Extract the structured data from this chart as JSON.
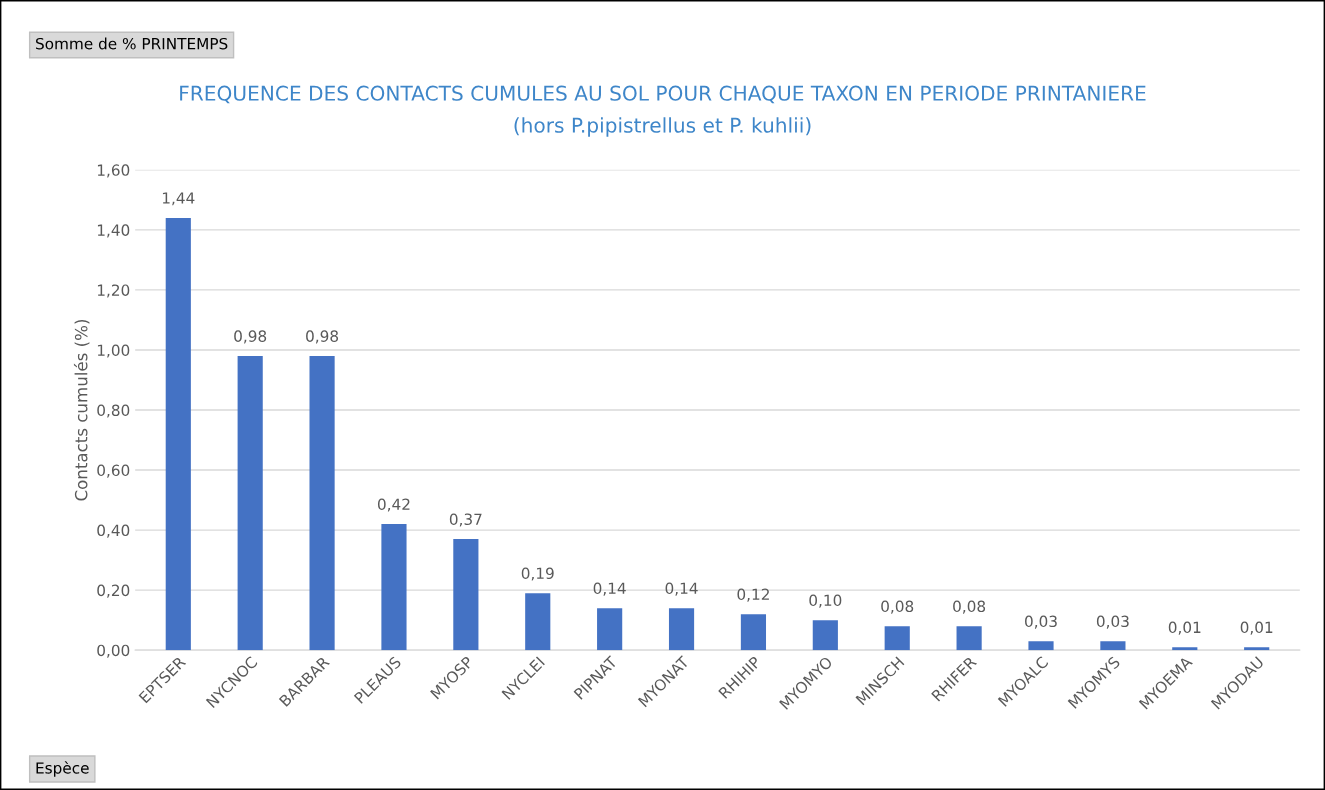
{
  "chart_data": {
    "type": "bar",
    "title": "FREQUENCE DES CONTACTS CUMULES AU SOL POUR CHAQUE TAXON EN PERIODE PRINTANIERE",
    "subtitle": "(hors P.pipistrellus et P. kuhlii)",
    "ylabel": "Contacts cumulés (%)",
    "categories": [
      "EPTSER",
      "NYCNOC",
      "BARBAR",
      "PLEAUS",
      "MYOSP",
      "NYCLEI",
      "PIPNAT",
      "MYONAT",
      "RHIHIP",
      "MYOMYO",
      "MINSCH",
      "RHIFER",
      "MYOALC",
      "MYOMYS",
      "MYOEMA",
      "MYODAU"
    ],
    "values": [
      1.44,
      0.98,
      0.98,
      0.42,
      0.37,
      0.19,
      0.14,
      0.14,
      0.12,
      0.1,
      0.08,
      0.08,
      0.03,
      0.03,
      0.01,
      0.01
    ],
    "value_labels": [
      "1,44",
      "0,98",
      "0,98",
      "0,42",
      "0,37",
      "0,19",
      "0,14",
      "0,14",
      "0,12",
      "0,10",
      "0,08",
      "0,08",
      "0,03",
      "0,03",
      "0,01",
      "0,01"
    ],
    "color": "#4472c4",
    "ylim": [
      0,
      1.6
    ],
    "yticks": [
      {
        "value": 0,
        "label": "0,00"
      },
      {
        "value": 0.2,
        "label": "0,20"
      },
      {
        "value": 0.4,
        "label": "0,40"
      },
      {
        "value": 0.6,
        "label": "0,60"
      },
      {
        "value": 0.8,
        "label": "0,80"
      },
      {
        "value": 1.0,
        "label": "1,00"
      },
      {
        "value": 1.2,
        "label": "1,20"
      },
      {
        "value": 1.4,
        "label": "1,40"
      },
      {
        "value": 1.6,
        "label": "1,60"
      }
    ],
    "grid": "y",
    "legend": false,
    "annotations": [
      "Somme de % PRINTEMPS",
      "Espèce"
    ]
  }
}
